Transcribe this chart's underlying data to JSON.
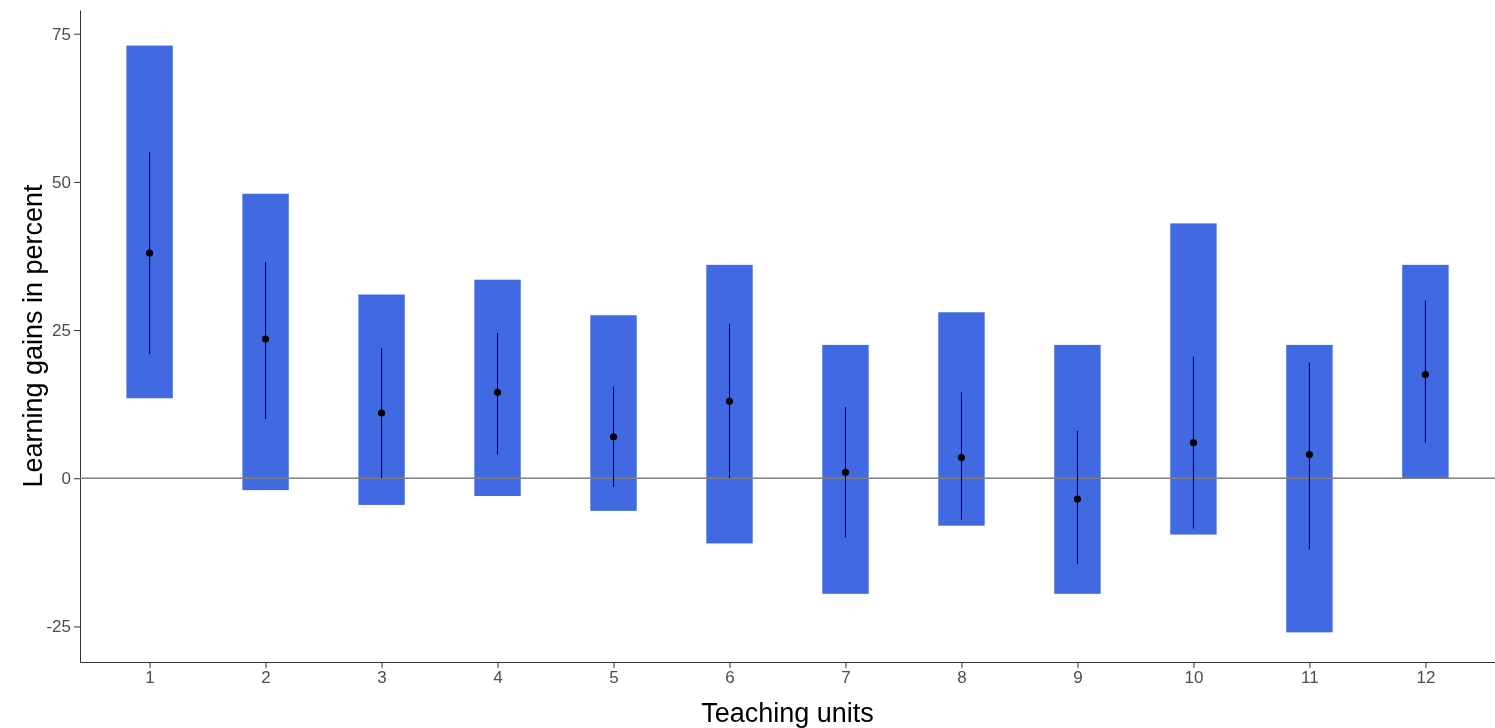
{
  "chart_data": {
    "type": "bar",
    "xlabel": "Teaching units",
    "ylabel": "Learning gains in percent",
    "categories": [
      "1",
      "2",
      "3",
      "4",
      "5",
      "6",
      "7",
      "8",
      "9",
      "10",
      "11",
      "12"
    ],
    "ylim": [
      -31,
      79
    ],
    "yticks": [
      -25,
      0,
      25,
      50,
      75
    ],
    "grid": false,
    "marker": "circle",
    "ref_lines": [
      {
        "axis": "y",
        "value": 0,
        "color": "#808080"
      }
    ],
    "series": [
      {
        "color": "#4169e1",
        "base": [
          13.5,
          -2,
          -4.5,
          -3,
          -5.5,
          -11,
          -19.5,
          -8,
          -19.5,
          -9.5,
          -26,
          0
        ],
        "values": [
          59.5,
          50,
          35.5,
          36.5,
          33,
          47,
          42,
          36,
          42,
          52.5,
          48.5,
          36
        ]
      },
      {
        "type": "scatter",
        "color": "#000000",
        "values": [
          38,
          23.5,
          11,
          14.5,
          7,
          13,
          1,
          3.5,
          -3.5,
          6,
          4,
          17.5
        ],
        "errors": [
          [
            21,
            55
          ],
          [
            10,
            36.5
          ],
          [
            0,
            22
          ],
          [
            4,
            24.5
          ],
          [
            -1.5,
            15.5
          ],
          [
            0,
            26
          ],
          [
            -10,
            12
          ],
          [
            -7,
            14.5
          ],
          [
            -14.5,
            8
          ],
          [
            -8.5,
            20.5
          ],
          [
            -12,
            19.5
          ],
          [
            6,
            30
          ]
        ]
      }
    ]
  }
}
